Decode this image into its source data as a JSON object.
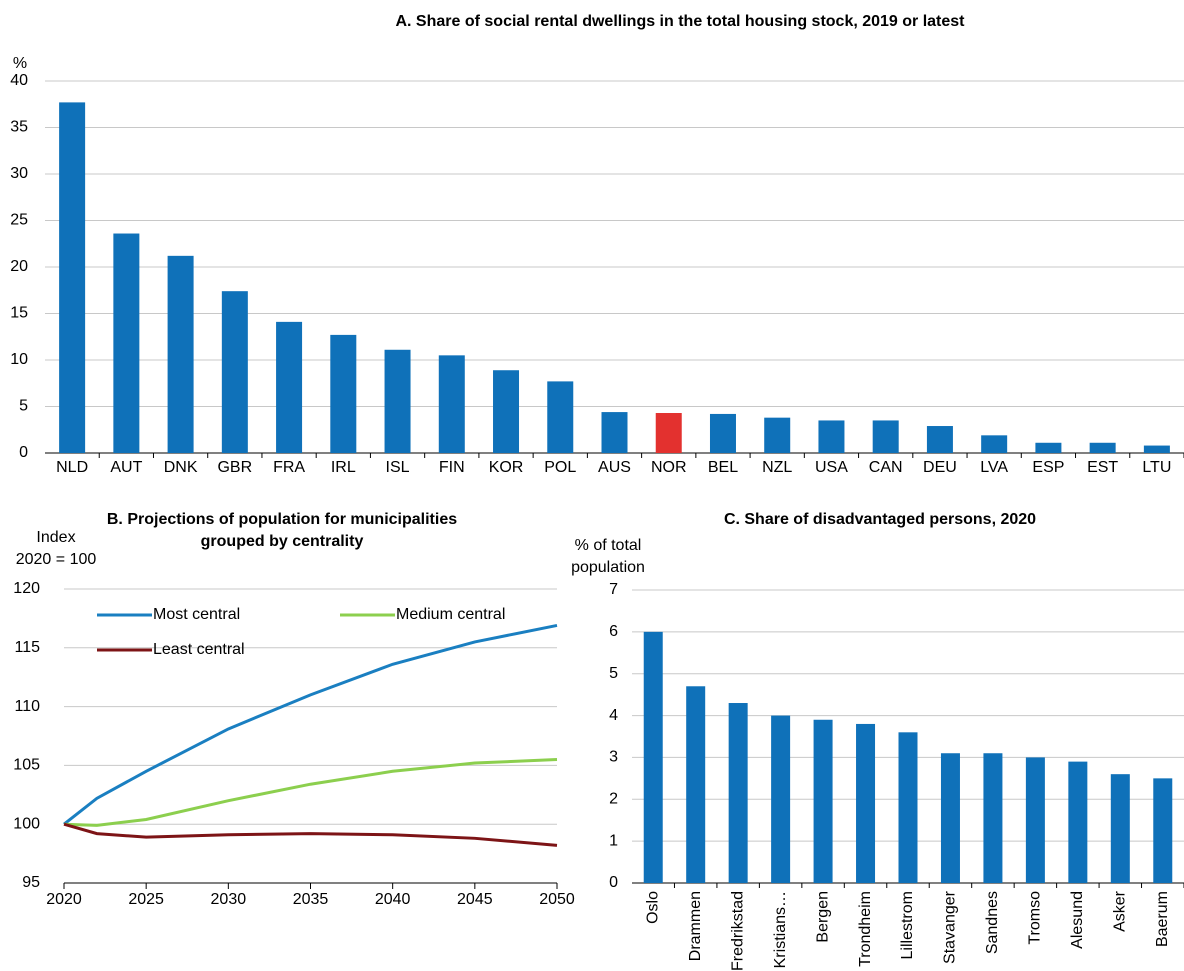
{
  "chart_data": [
    {
      "type": "bar",
      "title": "A. Share of social rental dwellings in the total housing stock, 2019 or latest",
      "ylabel": [
        "%"
      ],
      "categories": [
        "NLD",
        "AUT",
        "DNK",
        "GBR",
        "FRA",
        "IRL",
        "ISL",
        "FIN",
        "KOR",
        "POL",
        "AUS",
        "NOR",
        "BEL",
        "NZL",
        "USA",
        "CAN",
        "DEU",
        "LVA",
        "ESP",
        "EST",
        "LTU"
      ],
      "values": [
        37.7,
        23.6,
        21.2,
        17.4,
        14.1,
        12.7,
        11.1,
        10.5,
        8.9,
        7.7,
        4.4,
        4.3,
        4.2,
        3.8,
        3.5,
        3.5,
        2.9,
        1.9,
        1.1,
        1.1,
        0.8
      ],
      "colors": [
        "#0f71b9",
        "#0f71b9",
        "#0f71b9",
        "#0f71b9",
        "#0f71b9",
        "#0f71b9",
        "#0f71b9",
        "#0f71b9",
        "#0f71b9",
        "#0f71b9",
        "#0f71b9",
        "#e3312f",
        "#0f71b9",
        "#0f71b9",
        "#0f71b9",
        "#0f71b9",
        "#0f71b9",
        "#0f71b9",
        "#0f71b9",
        "#0f71b9",
        "#0f71b9"
      ],
      "ylim": [
        0,
        40
      ],
      "yticks": [
        0,
        5,
        10,
        15,
        20,
        25,
        30,
        35,
        40
      ],
      "grid": true
    },
    {
      "type": "line",
      "title": [
        "B. Projections of population for municipalities",
        "grouped by centrality"
      ],
      "ylabel": [
        "Index",
        "2020 = 100"
      ],
      "x": [
        2020,
        2022,
        2025,
        2030,
        2035,
        2040,
        2045,
        2050
      ],
      "series": [
        {
          "name": "Most central",
          "color": "#1a7fc1",
          "values": [
            100,
            102.2,
            104.5,
            108.1,
            111.0,
            113.6,
            115.5,
            116.9
          ]
        },
        {
          "name": "Medium central",
          "color": "#8ccf4e",
          "values": [
            100,
            99.9,
            100.4,
            102.0,
            103.4,
            104.5,
            105.2,
            105.5
          ]
        },
        {
          "name": "Least central",
          "color": "#7d1416",
          "values": [
            100,
            99.2,
            98.9,
            99.1,
            99.2,
            99.1,
            98.8,
            98.2
          ]
        }
      ],
      "xlim": [
        2020,
        2050
      ],
      "xticks": [
        2020,
        2025,
        2030,
        2035,
        2040,
        2045,
        2050
      ],
      "ylim": [
        95,
        120
      ],
      "yticks": [
        95,
        100,
        105,
        110,
        115,
        120
      ],
      "grid": true,
      "legend": "upper-left"
    },
    {
      "type": "bar",
      "title": "C. Share of disadvantaged persons, 2020",
      "ylabel": [
        "% of total",
        "population"
      ],
      "categories": [
        "Oslo",
        "Drammen",
        "Fredrikstad",
        "Kristians…",
        "Bergen",
        "Trondheim",
        "Lillestrom",
        "Stavanger",
        "Sandnes",
        "Tromso",
        "Alesund",
        "Asker",
        "Baerum"
      ],
      "values": [
        6.0,
        4.7,
        4.3,
        4.0,
        3.9,
        3.8,
        3.6,
        3.1,
        3.1,
        3.0,
        2.9,
        2.6,
        2.5
      ],
      "color": "#0f71b9",
      "rotate_labels": true,
      "ylim": [
        0,
        7
      ],
      "yticks": [
        0,
        1,
        2,
        3,
        4,
        5,
        6,
        7
      ],
      "grid": true
    }
  ]
}
